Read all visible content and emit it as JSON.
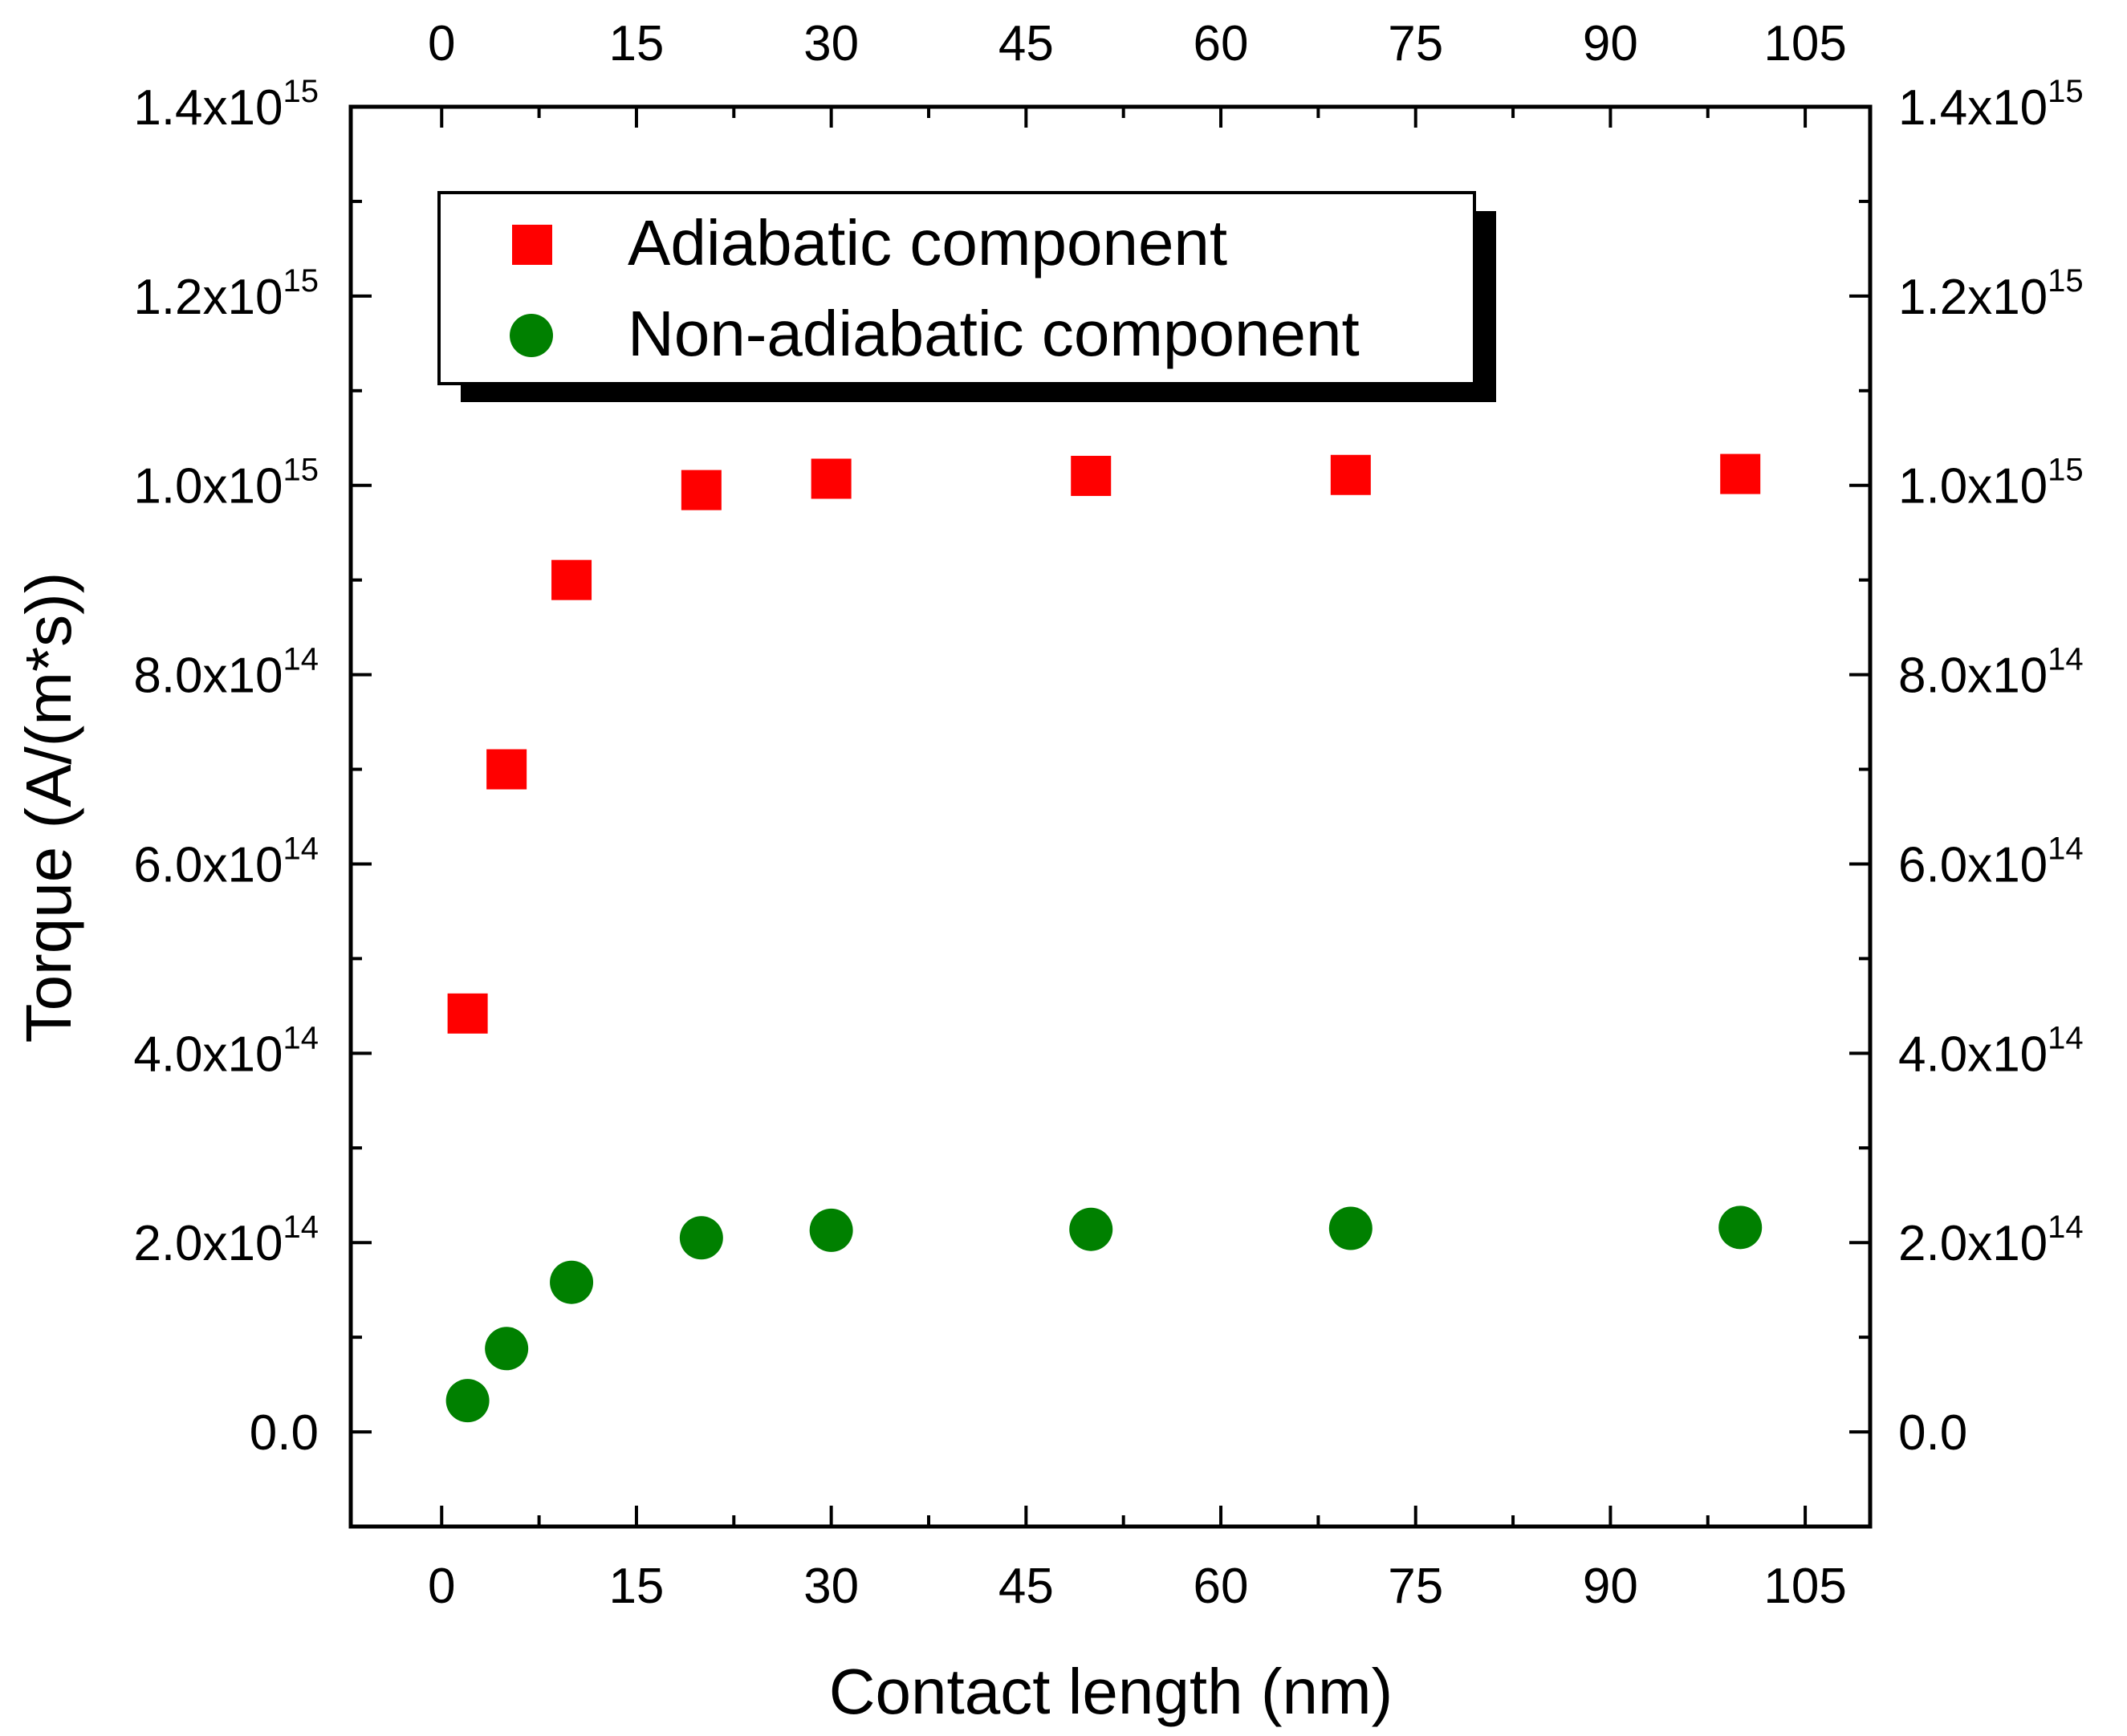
{
  "chart_data": {
    "type": "scatter",
    "title": "",
    "xlabel": "Contact length (nm)",
    "ylabel": "Torque (A/(m*s))",
    "xlim": [
      -7,
      110
    ],
    "ylim": [
      -100000000000000.0,
      1400000000000000.0
    ],
    "x_ticks": [
      0,
      15,
      30,
      45,
      60,
      75,
      90,
      105
    ],
    "x_tick_labels": [
      "0",
      "15",
      "30",
      "45",
      "60",
      "75",
      "90",
      "105"
    ],
    "y_ticks": [
      {
        "value": 0,
        "base": "0.0",
        "exp": ""
      },
      {
        "value": 200000000000000.0,
        "base": "2.0x10",
        "exp": "14"
      },
      {
        "value": 400000000000000.0,
        "base": "4.0x10",
        "exp": "14"
      },
      {
        "value": 600000000000000.0,
        "base": "6.0x10",
        "exp": "14"
      },
      {
        "value": 800000000000000.0,
        "base": "8.0x10",
        "exp": "14"
      },
      {
        "value": 1000000000000000.0,
        "base": "1.0x10",
        "exp": "15"
      },
      {
        "value": 1200000000000000.0,
        "base": "1.2x10",
        "exp": "15"
      },
      {
        "value": 1400000000000000.0,
        "base": "1.4x10",
        "exp": "15"
      }
    ],
    "legend_position": "top-left",
    "series": [
      {
        "name": "Adiabatic component",
        "marker": "square",
        "color": "#ff0000",
        "points": [
          {
            "x": 2,
            "y": 442000000000000.0
          },
          {
            "x": 5,
            "y": 700000000000000.0
          },
          {
            "x": 10,
            "y": 900000000000000.0
          },
          {
            "x": 20,
            "y": 995000000000000.0
          },
          {
            "x": 30,
            "y": 1007000000000000.0
          },
          {
            "x": 50,
            "y": 1010000000000000.0
          },
          {
            "x": 70,
            "y": 1011000000000000.0
          },
          {
            "x": 100,
            "y": 1012000000000000.0
          }
        ]
      },
      {
        "name": "Non-adiabatic component",
        "marker": "circle",
        "color": "#008000",
        "points": [
          {
            "x": 2,
            "y": 33000000000000.0
          },
          {
            "x": 5,
            "y": 88000000000000.0
          },
          {
            "x": 10,
            "y": 158000000000000.0
          },
          {
            "x": 20,
            "y": 205000000000000.0
          },
          {
            "x": 30,
            "y": 213000000000000.0
          },
          {
            "x": 50,
            "y": 214000000000000.0
          },
          {
            "x": 70,
            "y": 215000000000000.0
          },
          {
            "x": 100,
            "y": 216000000000000.0
          }
        ]
      }
    ]
  }
}
